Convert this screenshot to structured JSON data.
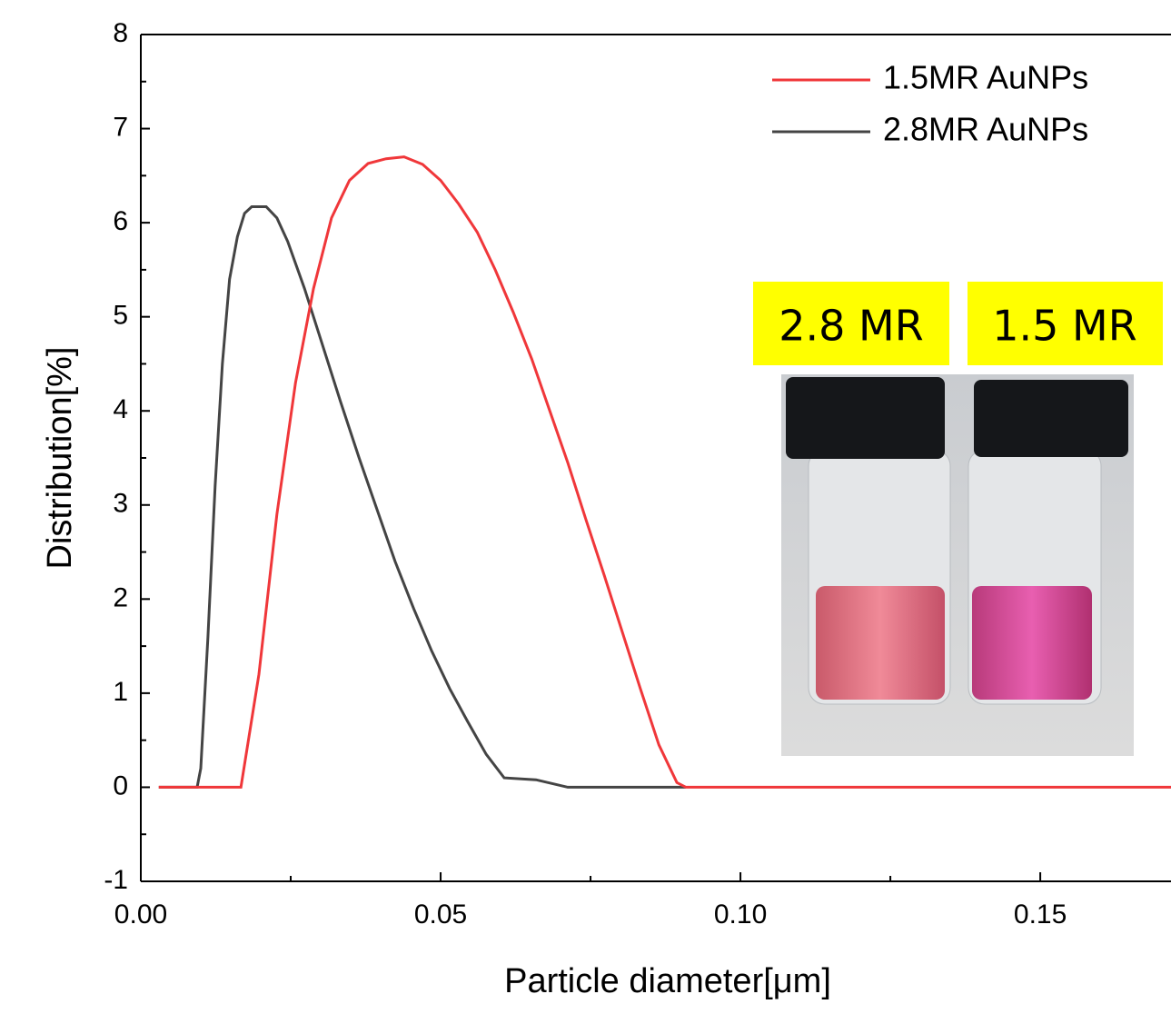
{
  "chart_data": {
    "type": "line",
    "x_label": "Particle diameter[μm]",
    "y_label": "Distribution[%]",
    "series": [
      {
        "name": "1.5MR AuNPs",
        "color": "#f0373a",
        "x": [
          0.003,
          0.0167,
          0.0197,
          0.0227,
          0.0258,
          0.0288,
          0.0318,
          0.0348,
          0.0379,
          0.0409,
          0.0439,
          0.047,
          0.05,
          0.053,
          0.0561,
          0.0591,
          0.0621,
          0.0652,
          0.0682,
          0.0712,
          0.0742,
          0.0773,
          0.0803,
          0.0833,
          0.0864,
          0.0894,
          0.0909,
          0.1718
        ],
        "values": [
          0,
          0,
          1.2,
          2.9,
          4.3,
          5.3,
          6.05,
          6.45,
          6.63,
          6.68,
          6.7,
          6.62,
          6.45,
          6.2,
          5.9,
          5.5,
          5.05,
          4.55,
          4.0,
          3.45,
          2.85,
          2.25,
          1.65,
          1.05,
          0.45,
          0.05,
          0,
          0
        ]
      },
      {
        "name": "2.8MR AuNPs",
        "color": "#444444",
        "x": [
          0.003,
          0.0094,
          0.01,
          0.0112,
          0.0124,
          0.0136,
          0.0148,
          0.0161,
          0.0173,
          0.0185,
          0.0209,
          0.0227,
          0.0245,
          0.0273,
          0.0303,
          0.0333,
          0.0364,
          0.0394,
          0.0424,
          0.0455,
          0.0485,
          0.0515,
          0.0545,
          0.0576,
          0.0606,
          0.0659,
          0.0712,
          0.0909
        ],
        "values": [
          0,
          0,
          0.2,
          1.6,
          3.2,
          4.5,
          5.4,
          5.85,
          6.1,
          6.17,
          6.17,
          6.05,
          5.8,
          5.3,
          4.7,
          4.1,
          3.5,
          2.95,
          2.4,
          1.9,
          1.45,
          1.05,
          0.7,
          0.35,
          0.1,
          0.08,
          0,
          0
        ]
      }
    ],
    "xlim": [
      0,
      0.1718
    ],
    "ylim": [
      -1,
      8
    ],
    "xticks": [
      {
        "value": 0,
        "label": "0.00"
      },
      0.05,
      {
        "value": 0.1,
        "label": "0.10"
      },
      0.15
    ],
    "yticks": [
      -1,
      0,
      1,
      2,
      3,
      4,
      5,
      6,
      7,
      8
    ],
    "grid": false,
    "legend": "upper right",
    "annotations": [
      "2.8 MR",
      "1.5 MR"
    ]
  }
}
